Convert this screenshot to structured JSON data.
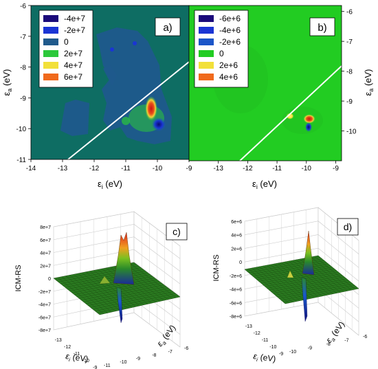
{
  "chart_data": [
    {
      "panel": "a)",
      "type": "heatmap",
      "xlabel": "εi (eV)",
      "ylabel": "εa (eV)",
      "xlim": [
        -14,
        -9
      ],
      "ylim": [
        -11,
        -6
      ],
      "xticks": [
        "-14",
        "-13",
        "-12",
        "-11",
        "-10",
        "-9"
      ],
      "yticks": [
        "-6",
        "-7",
        "-8",
        "-9",
        "-10",
        "-11"
      ],
      "background_color": "#0e6d63",
      "legend": {
        "position": "top-left",
        "entries": [
          {
            "label": "-4e+7",
            "color": "#1a0a7a"
          },
          {
            "label": "-2e+7",
            "color": "#1a35d4"
          },
          {
            "label": "0",
            "color": "#1f5a8c"
          },
          {
            "label": "2e+7",
            "color": "#2bc83a"
          },
          {
            "label": "4e+7",
            "color": "#f2e03a"
          },
          {
            "label": "6e+7",
            "color": "#f06a1c"
          }
        ]
      },
      "diagonal": {
        "from": [
          -12.3,
          -11
        ],
        "to": [
          -9,
          -8.3
        ]
      },
      "blobs": [
        {
          "x": -10.3,
          "y": -9.3,
          "value": 60000000.0
        },
        {
          "x": -10.3,
          "y": -9.5,
          "value": 60000000.0
        },
        {
          "x": -10.0,
          "y": -9.9,
          "value": -40000000.0
        },
        {
          "x": -10.4,
          "y": -9.85,
          "value": 20000000.0
        }
      ]
    },
    {
      "panel": "b)",
      "type": "heatmap",
      "xlabel": "εi (eV)",
      "ylabel": "εa (eV)",
      "xlim": [
        -14,
        -8.8
      ],
      "ylim": [
        -11,
        -5.8
      ],
      "xticks": [
        "-13",
        "-12",
        "-11",
        "-10",
        "-9"
      ],
      "yticks": [
        "-6",
        "-7",
        "-8",
        "-9",
        "-10"
      ],
      "background_color": "#22cc22",
      "legend": {
        "position": "top-left",
        "entries": [
          {
            "label": "-6e+6",
            "color": "#1a0a7a"
          },
          {
            "label": "-4e+6",
            "color": "#1a35d4"
          },
          {
            "label": "-2e+6",
            "color": "#1a55c8"
          },
          {
            "label": "0",
            "color": "#22cc22"
          },
          {
            "label": "2e+6",
            "color": "#f2e03a"
          },
          {
            "label": "4e+6",
            "color": "#f06a1c"
          }
        ]
      },
      "diagonal": {
        "from": [
          -11.8,
          -11
        ],
        "to": [
          -8.8,
          -8.0
        ]
      },
      "blobs": [
        {
          "x": -9.9,
          "y": -9.65,
          "value": 4000000.0
        },
        {
          "x": -9.9,
          "y": -9.9,
          "value": -6000000.0
        },
        {
          "x": -10.5,
          "y": -9.55,
          "value": 2000000.0
        }
      ]
    },
    {
      "panel": "c)",
      "type": "surface",
      "zlabel": "ICM-RS",
      "xlabel": "εi (eV)",
      "ylabel": "εa (eV)",
      "zticks": [
        "8e+7",
        "6e+7",
        "4e+7",
        "2e+7",
        "0",
        "-2e+7",
        "-4e+7",
        "-6e+7",
        "-8e+7"
      ],
      "xticks": [
        "-13",
        "-12",
        "-11",
        "-10",
        "-9"
      ],
      "yticks": [
        "-6",
        "-7",
        "-8",
        "-9",
        "-10",
        "-11"
      ],
      "zlim": [
        -80000000.0,
        80000000.0
      ],
      "peaks": [
        {
          "value": 70000000.0
        },
        {
          "value": -65000000.0
        }
      ]
    },
    {
      "panel": "d)",
      "type": "surface",
      "zlabel": "ICM-RS",
      "xlabel": "εi (eV)",
      "ylabel": "εa (eV)",
      "zticks": [
        "6e+6",
        "4e+6",
        "2e+6",
        "0",
        "-2e+6",
        "-4e+6",
        "-6e+6",
        "-8e+6"
      ],
      "xticks": [
        "-13",
        "-12",
        "-11",
        "-10",
        "-9"
      ],
      "yticks": [
        "-6",
        "-7",
        "-8",
        "-9",
        "-10"
      ],
      "zlim": [
        -8000000.0,
        6000000.0
      ],
      "peaks": [
        {
          "value": 4700000.0
        },
        {
          "value": -7500000.0
        }
      ]
    }
  ]
}
